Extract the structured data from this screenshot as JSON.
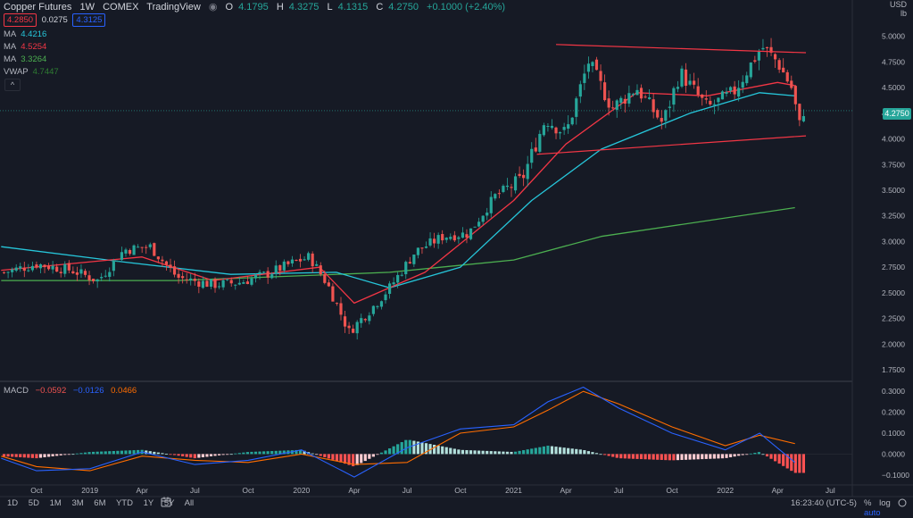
{
  "header": {
    "symbol": "Copper Futures",
    "interval": "1W",
    "exchange": "COMEX",
    "source": "TradingView",
    "o_label": "O",
    "o": "4.1795",
    "h_label": "H",
    "h": "4.3275",
    "l_label": "L",
    "l": "4.1315",
    "c_label": "C",
    "c": "4.2750",
    "change": "+0.1000 (+2.40%)",
    "sell": "4.2850",
    "spread": "0.0275",
    "buy": "4.3125"
  },
  "indicators": [
    {
      "name": "MA",
      "value": "4.4216",
      "color": "#26c6da"
    },
    {
      "name": "MA",
      "value": "4.5254",
      "color": "#f23645"
    },
    {
      "name": "MA",
      "value": "3.3264",
      "color": "#4caf50"
    },
    {
      "name": "VWAP",
      "value": "4.7447",
      "color": "#2e7d32"
    }
  ],
  "macd_legend": {
    "name": "MACD",
    "v1": "−0.0592",
    "v2": "−0.0126",
    "v3": "0.0466"
  },
  "price_axis": {
    "currency": "USD",
    "unit": "lb",
    "ticks": [
      "5.0000",
      "4.7500",
      "4.5000",
      "4.2500",
      "4.0000",
      "3.7500",
      "3.5000",
      "3.2500",
      "3.0000",
      "2.7500",
      "2.5000",
      "2.2500",
      "2.0000",
      "1.7500"
    ],
    "last_price": "4.2750"
  },
  "macd_axis": {
    "ticks": [
      "0.3000",
      "0.2000",
      "0.1000",
      "0.0000",
      "−0.1000"
    ]
  },
  "time_axis": [
    "Oct",
    "2019",
    "Apr",
    "Jul",
    "Oct",
    "2020",
    "Apr",
    "Jul",
    "Oct",
    "2021",
    "Apr",
    "Jul",
    "Oct",
    "2022",
    "Apr",
    "Jul"
  ],
  "bottom_bar": {
    "ranges": [
      "1D",
      "5D",
      "1M",
      "3M",
      "6M",
      "YTD",
      "1Y",
      "5Y",
      "All"
    ],
    "clock": "16:23:40 (UTC-5)",
    "pct": "%",
    "log": "log",
    "auto": "auto"
  },
  "colors": {
    "up": "#26a69a",
    "down": "#ef5350",
    "ma_fast": "#26c6da",
    "ma_mid": "#f23645",
    "ma_slow": "#4caf50",
    "trend": "#f23645",
    "macd": "#2962ff",
    "signal": "#ff6d00"
  },
  "chart_data": {
    "type": "candlestick",
    "price_range": [
      1.65,
      5.12
    ],
    "macd_range": [
      -0.13,
      0.33
    ],
    "start": "2018-08",
    "end": "2022-05",
    "anchors": [
      [
        "2018-08-06",
        2.7
      ],
      [
        "2018-10-01",
        2.78
      ],
      [
        "2018-12-01",
        2.72
      ],
      [
        "2019-01-15",
        2.62
      ],
      [
        "2019-03-01",
        2.92
      ],
      [
        "2019-04-15",
        2.95
      ],
      [
        "2019-06-01",
        2.65
      ],
      [
        "2019-08-01",
        2.58
      ],
      [
        "2019-09-15",
        2.6
      ],
      [
        "2019-11-01",
        2.68
      ],
      [
        "2019-12-20",
        2.8
      ],
      [
        "2020-01-15",
        2.85
      ],
      [
        "2020-02-15",
        2.58
      ],
      [
        "2020-03-23",
        2.12
      ],
      [
        "2020-05-01",
        2.35
      ],
      [
        "2020-06-01",
        2.55
      ],
      [
        "2020-07-15",
        2.9
      ],
      [
        "2020-09-01",
        3.05
      ],
      [
        "2020-10-15",
        3.08
      ],
      [
        "2020-12-01",
        3.45
      ],
      [
        "2021-01-15",
        3.6
      ],
      [
        "2021-02-25",
        4.2
      ],
      [
        "2021-04-01",
        4.05
      ],
      [
        "2021-05-10",
        4.75
      ],
      [
        "2021-06-20",
        4.3
      ],
      [
        "2021-08-01",
        4.5
      ],
      [
        "2021-09-15",
        4.15
      ],
      [
        "2021-10-15",
        4.65
      ],
      [
        "2021-12-01",
        4.3
      ],
      [
        "2022-01-15",
        4.45
      ],
      [
        "2022-03-05",
        4.9
      ],
      [
        "2022-04-01",
        4.75
      ],
      [
        "2022-04-25",
        4.5
      ],
      [
        "2022-05-09",
        4.13
      ],
      [
        "2022-05-16",
        4.28
      ]
    ],
    "moving_averages": {
      "ma_fast": [
        [
          "2018-08",
          2.95
        ],
        [
          "2019-03",
          2.8
        ],
        [
          "2019-09",
          2.68
        ],
        [
          "2020-03",
          2.7
        ],
        [
          "2020-06",
          2.55
        ],
        [
          "2020-10",
          2.75
        ],
        [
          "2021-02",
          3.4
        ],
        [
          "2021-06",
          3.9
        ],
        [
          "2021-11",
          4.25
        ],
        [
          "2022-03",
          4.45
        ],
        [
          "2022-05",
          4.42
        ]
      ],
      "ma_mid": [
        [
          "2018-08",
          2.72
        ],
        [
          "2019-04",
          2.85
        ],
        [
          "2019-08",
          2.62
        ],
        [
          "2020-02",
          2.75
        ],
        [
          "2020-04",
          2.4
        ],
        [
          "2020-08",
          2.7
        ],
        [
          "2021-01",
          3.4
        ],
        [
          "2021-04",
          3.95
        ],
        [
          "2021-08",
          4.45
        ],
        [
          "2021-12",
          4.42
        ],
        [
          "2022-04",
          4.55
        ],
        [
          "2022-05",
          4.52
        ]
      ],
      "ma_slow": [
        [
          "2018-08",
          2.62
        ],
        [
          "2019-06",
          2.62
        ],
        [
          "2020-06",
          2.7
        ],
        [
          "2021-01",
          2.82
        ],
        [
          "2021-06",
          3.05
        ],
        [
          "2022-05",
          3.33
        ]
      ]
    },
    "trendlines": [
      {
        "from": [
          "2021-03-15",
          4.92
        ],
        "to": [
          "2022-05-20",
          4.84
        ]
      },
      {
        "from": [
          "2021-02-10",
          3.85
        ],
        "to": [
          "2022-05-20",
          4.03
        ]
      }
    ],
    "macd": {
      "macd_line": [
        [
          "2018-08",
          -0.02
        ],
        [
          "2018-10",
          -0.08
        ],
        [
          "2019-01",
          -0.07
        ],
        [
          "2019-04",
          0.01
        ],
        [
          "2019-07",
          -0.05
        ],
        [
          "2019-10",
          -0.03
        ],
        [
          "2020-01",
          0.02
        ],
        [
          "2020-04",
          -0.11
        ],
        [
          "2020-07",
          0.03
        ],
        [
          "2020-10",
          0.12
        ],
        [
          "2021-01",
          0.14
        ],
        [
          "2021-03",
          0.25
        ],
        [
          "2021-05",
          0.32
        ],
        [
          "2021-07",
          0.22
        ],
        [
          "2021-10",
          0.1
        ],
        [
          "2022-01",
          0.02
        ],
        [
          "2022-03",
          0.1
        ],
        [
          "2022-05",
          -0.04
        ]
      ],
      "signal_line": [
        [
          "2018-08",
          -0.01
        ],
        [
          "2018-10",
          -0.06
        ],
        [
          "2019-01",
          -0.08
        ],
        [
          "2019-04",
          -0.01
        ],
        [
          "2019-07",
          -0.03
        ],
        [
          "2019-10",
          -0.04
        ],
        [
          "2020-01",
          0.0
        ],
        [
          "2020-04",
          -0.05
        ],
        [
          "2020-07",
          -0.04
        ],
        [
          "2020-10",
          0.1
        ],
        [
          "2021-01",
          0.13
        ],
        [
          "2021-03",
          0.21
        ],
        [
          "2021-05",
          0.3
        ],
        [
          "2021-07",
          0.24
        ],
        [
          "2021-10",
          0.13
        ],
        [
          "2022-01",
          0.04
        ],
        [
          "2022-03",
          0.09
        ],
        [
          "2022-05",
          0.05
        ]
      ]
    }
  }
}
